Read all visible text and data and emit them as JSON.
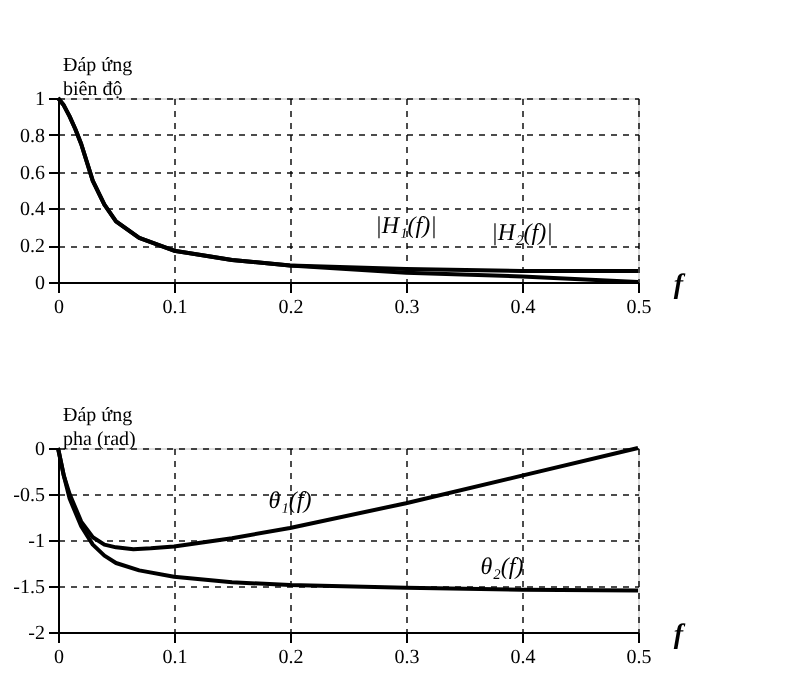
{
  "chart_data": [
    {
      "type": "line",
      "ylabel": "Đáp ứng\nbiên độ",
      "xlabel": "f",
      "xlim": [
        0,
        0.5
      ],
      "xticks": [
        0,
        0.1,
        0.2,
        0.3,
        0.4,
        0.5
      ],
      "ylim": [
        0,
        1
      ],
      "yticks": [
        0,
        0.2,
        0.4,
        0.6,
        0.8,
        1
      ],
      "grid": true,
      "legend": false,
      "line_style": "solid",
      "marker": "none",
      "series": [
        {
          "name": "|H₁(f)|",
          "color": "#000000",
          "x": [
            0,
            0.005,
            0.01,
            0.015,
            0.02,
            0.03,
            0.04,
            0.05,
            0.07,
            0.1,
            0.15,
            0.2,
            0.3,
            0.4,
            0.5
          ],
          "values": [
            1,
            0.96,
            0.9,
            0.83,
            0.75,
            0.55,
            0.42,
            0.33,
            0.24,
            0.17,
            0.12,
            0.09,
            0.07,
            0.06,
            0.06
          ]
        },
        {
          "name": "|H₂(f)|",
          "color": "#000000",
          "x": [
            0,
            0.005,
            0.01,
            0.015,
            0.02,
            0.03,
            0.04,
            0.05,
            0.07,
            0.1,
            0.15,
            0.2,
            0.3,
            0.4,
            0.5
          ],
          "values": [
            1,
            0.96,
            0.9,
            0.83,
            0.75,
            0.55,
            0.42,
            0.33,
            0.24,
            0.17,
            0.12,
            0.09,
            0.05,
            0.03,
            0
          ]
        }
      ]
    },
    {
      "type": "line",
      "ylabel": "Đáp ứng\npha (rad)",
      "xlabel": "f",
      "xlim": [
        0,
        0.5
      ],
      "xticks": [
        0,
        0.1,
        0.2,
        0.3,
        0.4,
        0.5
      ],
      "ylim": [
        -2,
        0
      ],
      "yticks": [
        -2,
        -1.5,
        -1,
        -0.5,
        0
      ],
      "grid": true,
      "legend": false,
      "line_style": "solid",
      "marker": "none",
      "series": [
        {
          "name": "θ₁(f)",
          "color": "#000000",
          "x": [
            0,
            0.005,
            0.01,
            0.02,
            0.03,
            0.04,
            0.05,
            0.065,
            0.08,
            0.1,
            0.15,
            0.2,
            0.3,
            0.4,
            0.5
          ],
          "values": [
            0,
            -0.3,
            -0.5,
            -0.8,
            -0.97,
            -1.05,
            -1.08,
            -1.1,
            -1.09,
            -1.07,
            -0.98,
            -0.87,
            -0.6,
            -0.3,
            0
          ]
        },
        {
          "name": "θ₂(f)",
          "color": "#000000",
          "x": [
            0,
            0.005,
            0.01,
            0.02,
            0.03,
            0.04,
            0.05,
            0.07,
            0.1,
            0.15,
            0.2,
            0.3,
            0.4,
            0.5
          ],
          "values": [
            0,
            -0.3,
            -0.55,
            -0.85,
            -1.05,
            -1.17,
            -1.25,
            -1.33,
            -1.4,
            -1.46,
            -1.49,
            -1.52,
            -1.54,
            -1.55
          ]
        }
      ]
    }
  ]
}
